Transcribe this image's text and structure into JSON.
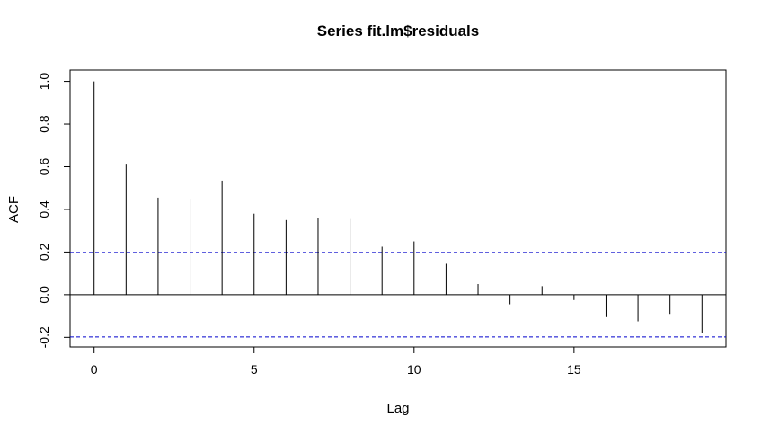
{
  "chart_data": {
    "type": "bar",
    "title": "Series  fit.lm$residuals",
    "xlabel": "Lag",
    "ylabel": "ACF",
    "x": [
      0,
      1,
      2,
      3,
      4,
      5,
      6,
      7,
      8,
      9,
      10,
      11,
      12,
      13,
      14,
      15,
      16,
      17,
      18,
      19
    ],
    "values": [
      1.0,
      0.61,
      0.455,
      0.45,
      0.535,
      0.38,
      0.35,
      0.36,
      0.355,
      0.225,
      0.25,
      0.145,
      0.05,
      -0.045,
      0.04,
      -0.025,
      -0.105,
      -0.125,
      -0.09,
      -0.18
    ],
    "xlim": [
      -0.75,
      19.75
    ],
    "ylim": [
      -0.245,
      1.053
    ],
    "x_ticks": [
      0,
      5,
      10,
      15
    ],
    "y_ticks": [
      -0.2,
      0.0,
      0.2,
      0.4,
      0.6,
      0.8,
      1.0
    ],
    "y_tick_labels": [
      "-0.2",
      "0.0",
      "0.2",
      "0.4",
      "0.6",
      "0.8",
      "1.0"
    ],
    "confidence_band": [
      0.198,
      -0.198
    ],
    "zero_line": 0,
    "grid": false,
    "colors": {
      "bars": "#000000",
      "band": "#0000cc",
      "axes": "#000000"
    }
  }
}
